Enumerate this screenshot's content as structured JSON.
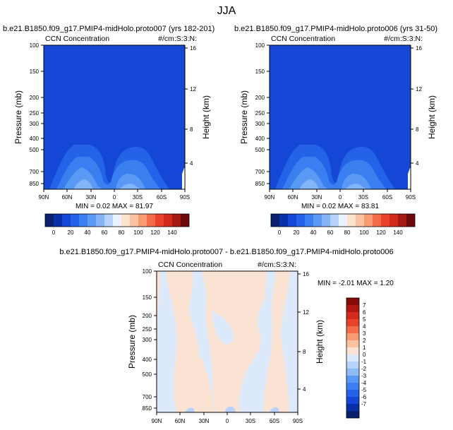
{
  "page_title": "JJA",
  "colors": {
    "deep_blue": "#1447d6",
    "diff_background": "#dbe9fb",
    "diff_positive": "#fbe3d3"
  },
  "chart_data": [
    {
      "type": "heatmap",
      "title": "b.e21.B1850.f09_g17.PMIP4-midHolo.proto007 (yrs 182-201)",
      "left_label": "CCN Concentration",
      "right_label": "#/cm:S:3:N:",
      "ylabel": "Pressure (mb)",
      "ylabel_right": "Height (km)",
      "x_ticks": [
        "90N",
        "60N",
        "30N",
        "0",
        "30S",
        "60S",
        "90S"
      ],
      "y_ticks": [
        "100",
        "150",
        "200",
        "250",
        "300",
        "400",
        "500",
        "700",
        "850"
      ],
      "y_ticks_right": [
        "16",
        "12",
        "8",
        "4"
      ],
      "stats": "MIN =  0.02  MAX =  81.97",
      "colorbar_labels": [
        "0",
        "20",
        "40",
        "60",
        "80",
        "100",
        "120",
        "140"
      ]
    },
    {
      "type": "heatmap",
      "title": "b.e21.B1850.f09_g17.PMIP4-midHolo.proto006 (yrs 31-50)",
      "left_label": "CCN Concentration",
      "right_label": "#/cm:S:3:N:",
      "ylabel": "Pressure (mb)",
      "ylabel_right": "Height (km)",
      "x_ticks": [
        "90N",
        "60N",
        "30N",
        "0",
        "30S",
        "60S",
        "90S"
      ],
      "y_ticks": [
        "100",
        "150",
        "200",
        "250",
        "300",
        "400",
        "500",
        "700",
        "850"
      ],
      "y_ticks_right": [
        "16",
        "12",
        "8",
        "4"
      ],
      "stats": "MIN =  0.02  MAX =  83.81",
      "colorbar_labels": [
        "0",
        "20",
        "40",
        "60",
        "80",
        "100",
        "120",
        "140"
      ]
    },
    {
      "type": "heatmap",
      "title": "b.e21.B1850.f09_g17.PMIP4-midHolo.proto007 - b.e21.B1850.f09_g17.PMIP4-midHolo.proto006",
      "left_label": "CCN Concentration",
      "right_label": "#/cm:S:3:N:",
      "ylabel": "Pressure (mb)",
      "ylabel_right": "Height (km)",
      "x_ticks": [
        "90N",
        "60N",
        "30N",
        "0",
        "30S",
        "60S",
        "90S"
      ],
      "y_ticks": [
        "100",
        "150",
        "200",
        "250",
        "300",
        "400",
        "500",
        "700",
        "850"
      ],
      "y_ticks_right": [
        "16",
        "12",
        "8",
        "4"
      ],
      "stats": "MIN = -2.01  MAX =  1.20",
      "colorbar_labels": [
        "7",
        "6",
        "5",
        "4",
        "3",
        "2",
        "1",
        "0",
        "-1",
        "-2",
        "-3",
        "-4",
        "-5",
        "-6",
        "-7"
      ]
    }
  ]
}
